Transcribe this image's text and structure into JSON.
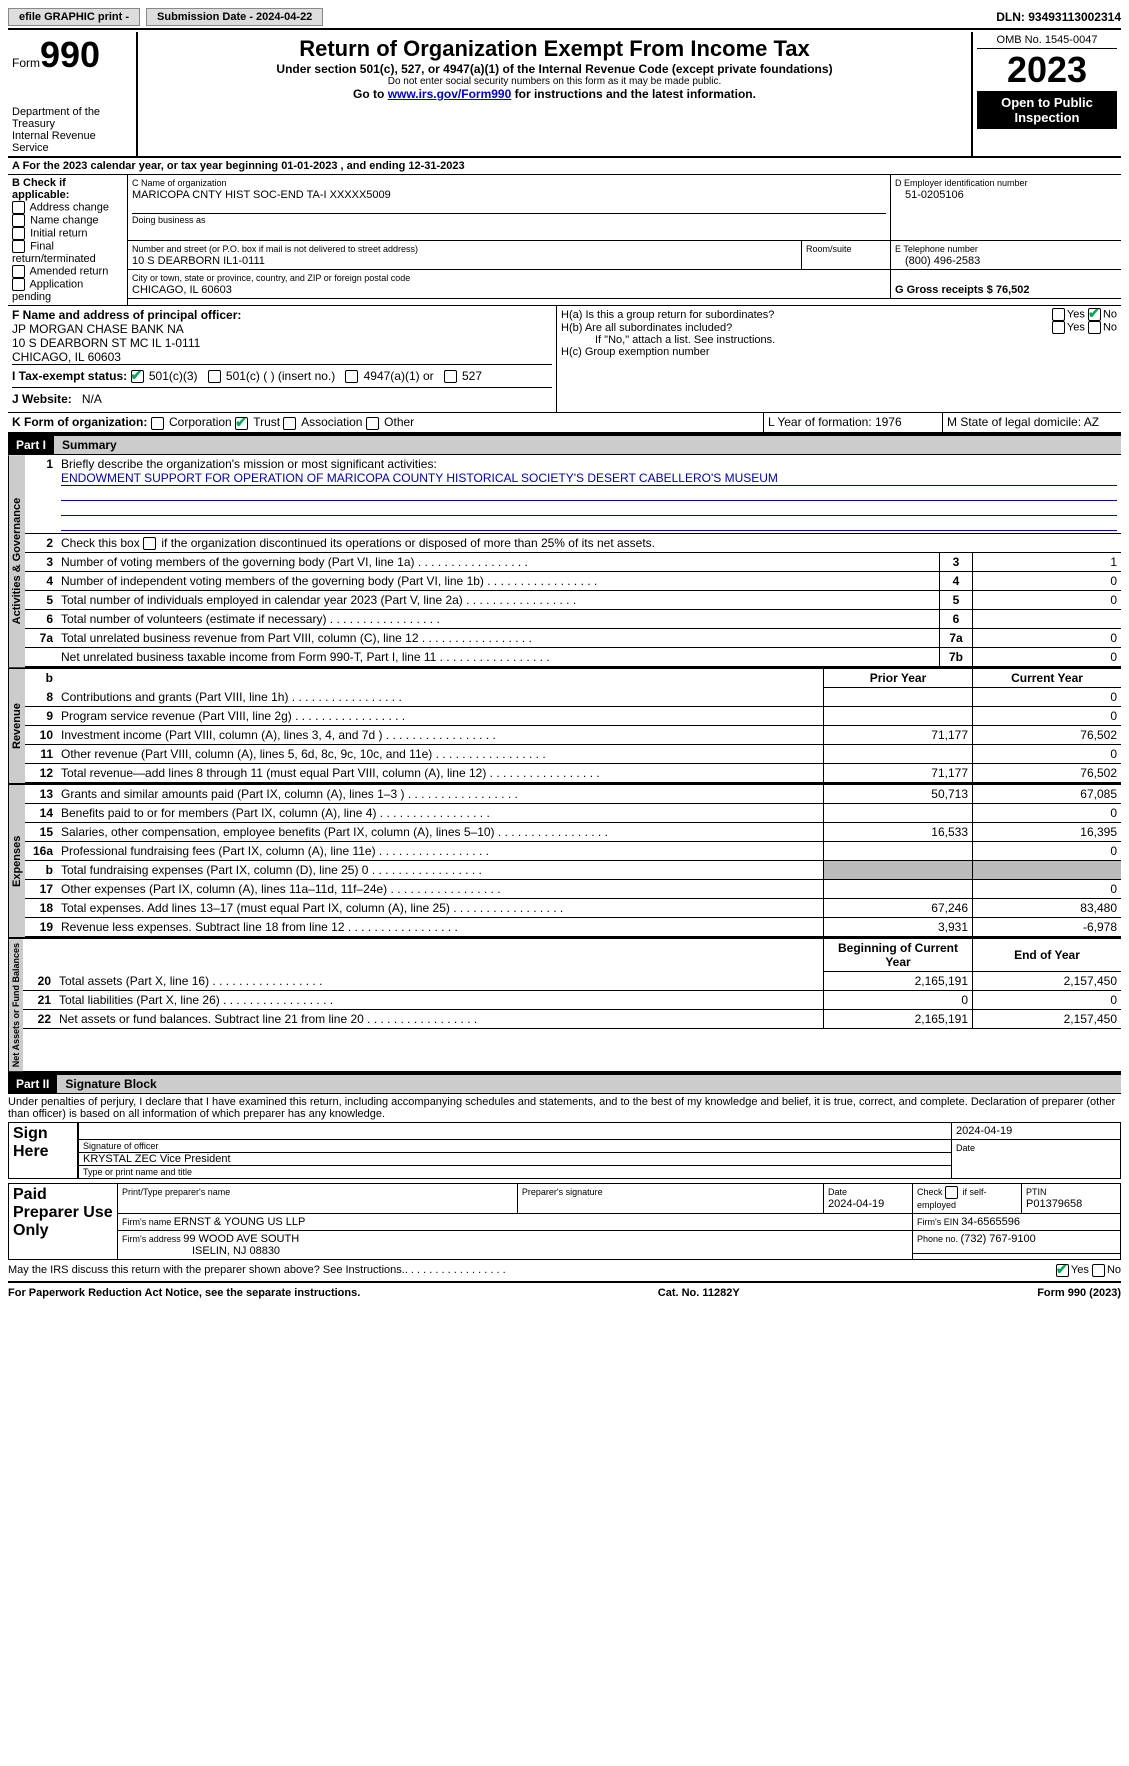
{
  "topbar": {
    "efile": "efile GRAPHIC print - ",
    "submission": "Submission Date - 2024-04-22",
    "dln": "DLN: 93493113002314"
  },
  "header": {
    "form_label": "Form",
    "form_number": "990",
    "dept": "Department of the Treasury",
    "irs": "Internal Revenue Service",
    "title": "Return of Organization Exempt From Income Tax",
    "sub1": "Under section 501(c), 527, or 4947(a)(1) of the Internal Revenue Code (except private foundations)",
    "sub2": "Do not enter social security numbers on this form as it may be made public.",
    "sub3_prefix": "Go to ",
    "sub3_link": "www.irs.gov/Form990",
    "sub3_suffix": " for instructions and the latest information.",
    "omb": "OMB No. 1545-0047",
    "year": "2023",
    "inspection": "Open to Public Inspection"
  },
  "line_a": "A For the 2023 calendar year, or tax year beginning 01-01-2023   , and ending 12-31-2023",
  "box_b": {
    "title": "B Check if applicable:",
    "opts": [
      "Address change",
      "Name change",
      "Initial return",
      "Final return/terminated",
      "Amended return",
      "Application pending"
    ]
  },
  "box_c": {
    "name_lbl": "C Name of organization",
    "name": "MARICOPA CNTY HIST SOC-END TA-I XXXXX5009",
    "dba_lbl": "Doing business as",
    "addr_lbl": "Number and street (or P.O. box if mail is not delivered to street address)",
    "addr": "10 S DEARBORN IL1-0111",
    "room_lbl": "Room/suite",
    "city_lbl": "City or town, state or province, country, and ZIP or foreign postal code",
    "city": "CHICAGO, IL  60603"
  },
  "box_d": {
    "lbl": "D Employer identification number",
    "val": "51-0205106"
  },
  "box_e": {
    "lbl": "E Telephone number",
    "val": "(800) 496-2583"
  },
  "box_g": {
    "lbl": "G Gross receipts $ 76,502"
  },
  "box_f": {
    "lbl": "F  Name and address of principal officer:",
    "l1": "JP MORGAN CHASE BANK NA",
    "l2": "10 S DEARBORN ST MC IL 1-0111",
    "l3": "CHICAGO, IL  60603"
  },
  "box_h": {
    "a": "H(a)  Is this a group return for subordinates?",
    "b": "H(b)  Are all subordinates included?",
    "b2": "If \"No,\" attach a list. See instructions.",
    "c": "H(c)  Group exemption number"
  },
  "box_i": {
    "lbl": "I   Tax-exempt status:",
    "o1": "501(c)(3)",
    "o2": "501(c) (  ) (insert no.)",
    "o3": "4947(a)(1) or",
    "o4": "527"
  },
  "box_j": {
    "lbl": "J   Website:",
    "val": "N/A"
  },
  "box_k": {
    "lbl": "K Form of organization:",
    "o1": "Corporation",
    "o2": "Trust",
    "o3": "Association",
    "o4": "Other"
  },
  "box_l": "L Year of formation: 1976",
  "box_m": "M State of legal domicile: AZ",
  "part1": {
    "hdr": "Part I",
    "title": "Summary"
  },
  "summary": {
    "l1_lbl": "Briefly describe the organization's mission or most significant activities:",
    "l1_val": "ENDOWMENT SUPPORT FOR OPERATION OF MARICOPA COUNTY HISTORICAL SOCIETY'S DESERT CABELLERO'S MUSEUM",
    "l2": "Check this box       if the organization discontinued its operations or disposed of more than 25% of its net assets.",
    "rows_gov": [
      {
        "n": "3",
        "t": "Number of voting members of the governing body (Part VI, line 1a)",
        "b": "3",
        "v": "1"
      },
      {
        "n": "4",
        "t": "Number of independent voting members of the governing body (Part VI, line 1b)",
        "b": "4",
        "v": "0"
      },
      {
        "n": "5",
        "t": "Total number of individuals employed in calendar year 2023 (Part V, line 2a)",
        "b": "5",
        "v": "0"
      },
      {
        "n": "6",
        "t": "Total number of volunteers (estimate if necessary)",
        "b": "6",
        "v": ""
      },
      {
        "n": "7a",
        "t": "Total unrelated business revenue from Part VIII, column (C), line 12",
        "b": "7a",
        "v": "0"
      },
      {
        "n": "",
        "t": "Net unrelated business taxable income from Form 990-T, Part I, line 11",
        "b": "7b",
        "v": "0"
      }
    ],
    "col_prior": "Prior Year",
    "col_curr": "Current Year",
    "rows_rev": [
      {
        "n": "8",
        "t": "Contributions and grants (Part VIII, line 1h)",
        "p": "",
        "c": "0"
      },
      {
        "n": "9",
        "t": "Program service revenue (Part VIII, line 2g)",
        "p": "",
        "c": "0"
      },
      {
        "n": "10",
        "t": "Investment income (Part VIII, column (A), lines 3, 4, and 7d )",
        "p": "71,177",
        "c": "76,502"
      },
      {
        "n": "11",
        "t": "Other revenue (Part VIII, column (A), lines 5, 6d, 8c, 9c, 10c, and 11e)",
        "p": "",
        "c": "0"
      },
      {
        "n": "12",
        "t": "Total revenue—add lines 8 through 11 (must equal Part VIII, column (A), line 12)",
        "p": "71,177",
        "c": "76,502"
      }
    ],
    "rows_exp": [
      {
        "n": "13",
        "t": "Grants and similar amounts paid (Part IX, column (A), lines 1–3 )",
        "p": "50,713",
        "c": "67,085"
      },
      {
        "n": "14",
        "t": "Benefits paid to or for members (Part IX, column (A), line 4)",
        "p": "",
        "c": "0"
      },
      {
        "n": "15",
        "t": "Salaries, other compensation, employee benefits (Part IX, column (A), lines 5–10)",
        "p": "16,533",
        "c": "16,395"
      },
      {
        "n": "16a",
        "t": "Professional fundraising fees (Part IX, column (A), line 11e)",
        "p": "",
        "c": "0"
      },
      {
        "n": "b",
        "t": "Total fundraising expenses (Part IX, column (D), line 25) 0",
        "p": "GREY",
        "c": "GREY"
      },
      {
        "n": "17",
        "t": "Other expenses (Part IX, column (A), lines 11a–11d, 11f–24e)",
        "p": "",
        "c": "0"
      },
      {
        "n": "18",
        "t": "Total expenses. Add lines 13–17 (must equal Part IX, column (A), line 25)",
        "p": "67,246",
        "c": "83,480"
      },
      {
        "n": "19",
        "t": "Revenue less expenses. Subtract line 18 from line 12",
        "p": "3,931",
        "c": "-6,978"
      }
    ],
    "col_beg": "Beginning of Current Year",
    "col_end": "End of Year",
    "rows_net": [
      {
        "n": "20",
        "t": "Total assets (Part X, line 16)",
        "p": "2,165,191",
        "c": "2,157,450"
      },
      {
        "n": "21",
        "t": "Total liabilities (Part X, line 26)",
        "p": "0",
        "c": "0"
      },
      {
        "n": "22",
        "t": "Net assets or fund balances. Subtract line 21 from line 20",
        "p": "2,165,191",
        "c": "2,157,450"
      }
    ]
  },
  "vtabs": {
    "gov": "Activities & Governance",
    "rev": "Revenue",
    "exp": "Expenses",
    "net": "Net Assets or Fund Balances"
  },
  "part2": {
    "hdr": "Part II",
    "title": "Signature Block"
  },
  "perjury": "Under penalties of perjury, I declare that I have examined this return, including accompanying schedules and statements, and to the best of my knowledge and belief, it is true, correct, and complete. Declaration of preparer (other than officer) is based on all information of which preparer has any knowledge.",
  "sign": {
    "here": "Sign Here",
    "sig_lbl": "Signature of officer",
    "date_lbl": "Date",
    "date": "2024-04-19",
    "name": "KRYSTAL ZEC Vice President",
    "type_lbl": "Type or print name and title"
  },
  "paid": {
    "title": "Paid Preparer Use Only",
    "c1": "Print/Type preparer's name",
    "c2": "Preparer's signature",
    "c3": "Date",
    "c3v": "2024-04-19",
    "c4": "Check       if self-employed",
    "c5": "PTIN",
    "c5v": "P01379658",
    "firm_lbl": "Firm's name   ",
    "firm": "ERNST & YOUNG US LLP",
    "ein_lbl": "Firm's EIN  ",
    "ein": "34-6565596",
    "addr_lbl": "Firm's address ",
    "addr1": "99 WOOD AVE SOUTH",
    "addr2": "ISELIN, NJ  08830",
    "phone_lbl": "Phone no. ",
    "phone": "(732) 767-9100"
  },
  "discuss": "May the IRS discuss this return with the preparer shown above? See Instructions.",
  "footer": {
    "l": "For Paperwork Reduction Act Notice, see the separate instructions.",
    "m": "Cat. No. 11282Y",
    "r": "Form 990 (2023)"
  },
  "yes": "Yes",
  "no": "No"
}
